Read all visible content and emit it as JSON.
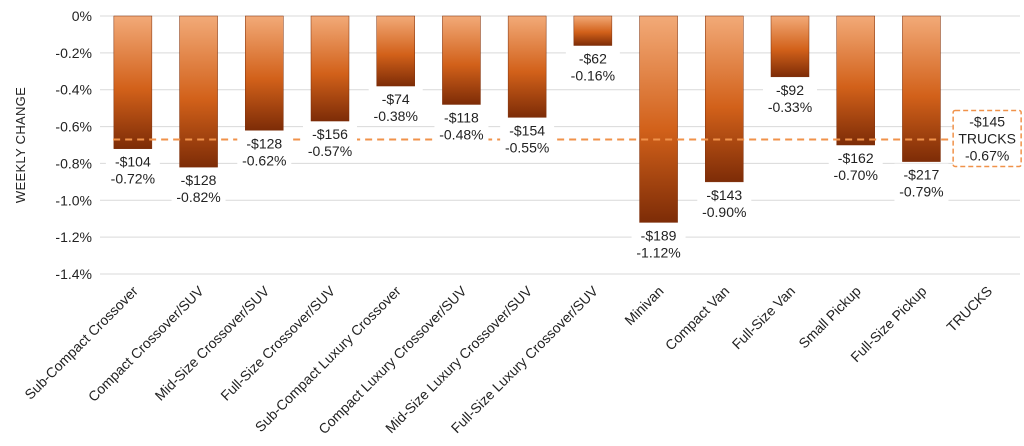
{
  "chart_data": {
    "type": "bar",
    "ylabel": "WEEKLY CHANGE",
    "xlabel": "",
    "title": "",
    "ylim": [
      -1.4,
      0
    ],
    "yticks": [
      "0%",
      "-0.2%",
      "-0.4%",
      "-0.6%",
      "-0.8%",
      "-1.0%",
      "-1.2%",
      "-1.4%"
    ],
    "grid": true,
    "categories": [
      "Sub-Compact Crossover",
      "Compact Crossover/SUV",
      "Mid-Size Crossover/SUV",
      "Full-Size Crossover/SUV",
      "Sub-Compact Luxury Crossover",
      "Compact Luxury Crossover/SUV",
      "Mid-Size Luxury Crossover/SUV",
      "Full-Size Luxury Crossover/SUV",
      "Minivan",
      "Compact Van",
      "Full-Size Van",
      "Small Pickup",
      "Full-Size Pickup",
      "TRUCKS"
    ],
    "values": [
      -0.72,
      -0.82,
      -0.62,
      -0.57,
      -0.38,
      -0.48,
      -0.55,
      -0.16,
      -1.12,
      -0.9,
      -0.33,
      -0.7,
      -0.79,
      null
    ],
    "dollar_labels": [
      "-$104",
      "-$128",
      "-$128",
      "-$156",
      "-$74",
      "-$118",
      "-$154",
      "-$62",
      "-$189",
      "-$143",
      "-$92",
      "-$162",
      "-$217",
      ""
    ],
    "percent_labels": [
      "-0.72%",
      "-0.82%",
      "-0.62%",
      "-0.57%",
      "-0.38%",
      "-0.48%",
      "-0.55%",
      "-0.16%",
      "-1.12%",
      "-0.90%",
      "-0.33%",
      "-0.70%",
      "-0.79%",
      ""
    ],
    "average": {
      "value": -0.67,
      "dollar": "-$145",
      "name": "TRUCKS",
      "percent": "-0.67%"
    },
    "colors": {
      "bar_top": "#f2aa78",
      "bar_mid": "#d2611a",
      "bar_bottom": "#7d2c07",
      "average_line": "#f0924a",
      "grid": "#d9d9d9"
    }
  }
}
